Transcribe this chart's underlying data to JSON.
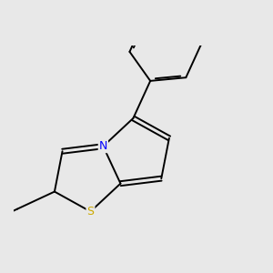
{
  "bg_color": "#e8e8e8",
  "bond_color": "#000000",
  "N_color": "#0000ff",
  "S_color": "#ccaa00",
  "Cl_color": "#00bb00",
  "lw": 1.4,
  "dbo": 0.055,
  "fs": 9
}
